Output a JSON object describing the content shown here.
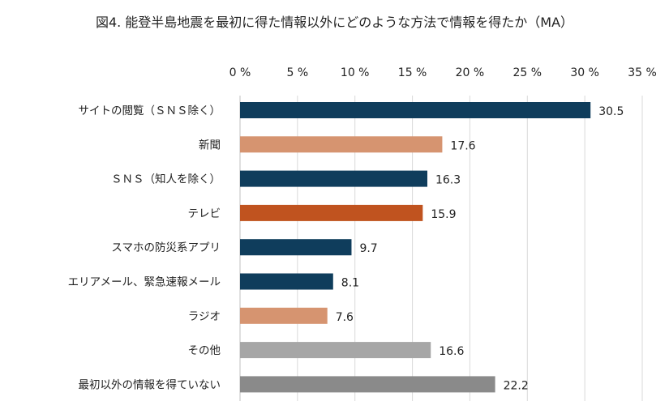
{
  "chart_data": {
    "type": "bar",
    "orientation": "horizontal",
    "title": "図4. 能登半島地震を最初に得た情報以外にどのような方法で情報を得たか（MA）",
    "categories": [
      "サイトの閲覧（ＳＮＳ除く）",
      "新聞",
      "ＳＮＳ（知人を除く）",
      "テレビ",
      "スマホの防災系アプリ",
      "エリアメール、緊急速報メール",
      "ラジオ",
      "その他",
      "最初以外の情報を得ていない"
    ],
    "values": [
      30.5,
      17.6,
      16.3,
      15.9,
      9.7,
      8.1,
      7.6,
      16.6,
      22.2
    ],
    "value_labels": [
      "30.5",
      "17.6",
      "16.3",
      "15.9",
      "9.7",
      "8.1",
      "7.6",
      "16.6",
      "22.2"
    ],
    "colors": [
      "#0f3d5c",
      "#d69470",
      "#0f3d5c",
      "#c0531f",
      "#0f3d5c",
      "#0f3d5c",
      "#d69470",
      "#a6a6a6",
      "#8a8a8a"
    ],
    "xlim": [
      0,
      35
    ],
    "xticks": [
      0,
      5,
      10,
      15,
      20,
      25,
      30,
      35
    ],
    "xtick_labels": [
      "0 %",
      "5 %",
      "10 %",
      "15 %",
      "20 %",
      "25 %",
      "30 %",
      "35 %"
    ],
    "axis_position": "top",
    "grid": true,
    "unit": "%"
  }
}
